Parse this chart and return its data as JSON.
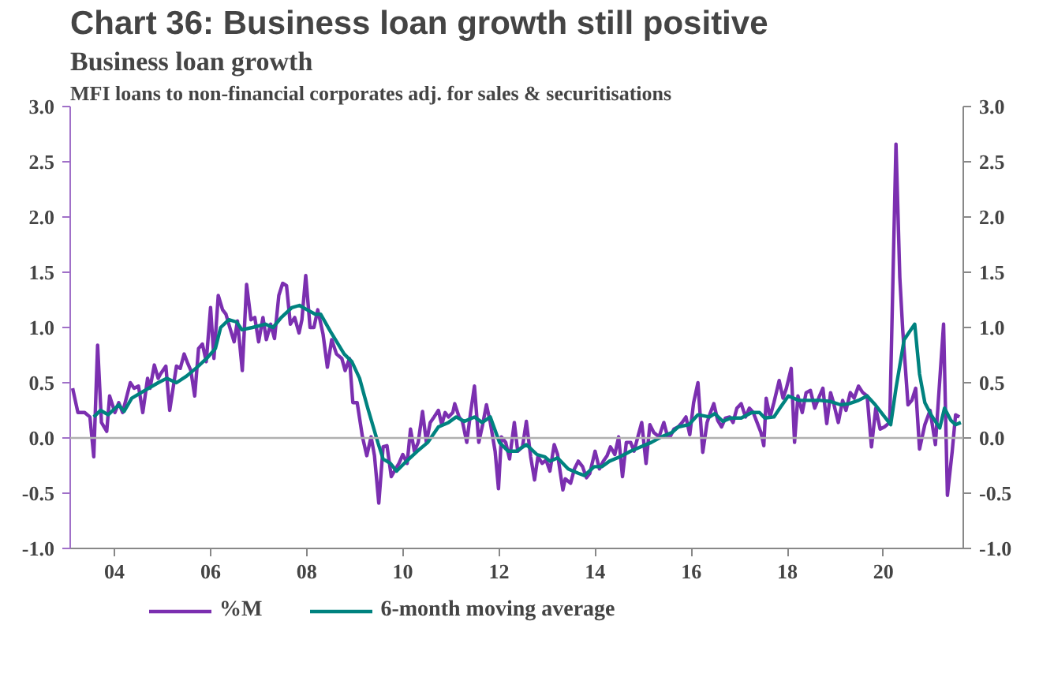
{
  "chart_data": {
    "type": "line",
    "title": "Chart 36: Business loan growth still positive",
    "subtitle": "Business loan growth",
    "annotations": [
      "MFI loans to non-financial corporates adj. for sales & securitisations"
    ],
    "xlim": [
      2003.08,
      2021.66
    ],
    "xticks": [
      {
        "value": 2004,
        "label": "04"
      },
      {
        "value": 2006,
        "label": "06"
      },
      {
        "value": 2008,
        "label": "08"
      },
      {
        "value": 2010,
        "label": "10"
      },
      {
        "value": 2012,
        "label": "12"
      },
      {
        "value": 2014,
        "label": "14"
      },
      {
        "value": 2016,
        "label": "16"
      },
      {
        "value": 2018,
        "label": "18"
      },
      {
        "value": 2020,
        "label": "20"
      }
    ],
    "ylim": [
      -1.0,
      3.0
    ],
    "yticks": [
      {
        "value": -1.0,
        "label": "-1.0"
      },
      {
        "value": -0.5,
        "label": "-0.5"
      },
      {
        "value": 0,
        "label": "0.0"
      },
      {
        "value": 0.5,
        "label": "0.5"
      },
      {
        "value": 1.0,
        "label": "1.0"
      },
      {
        "value": 1.5,
        "label": "1.5"
      },
      {
        "value": 2.0,
        "label": "2.0"
      },
      {
        "value": 2.5,
        "label": "2.5"
      },
      {
        "value": 3.0,
        "label": "3.0"
      }
    ],
    "y2lim": [
      -1.0,
      3.0
    ],
    "y2ticks": [
      {
        "value": -1.0,
        "label": "-1.0"
      },
      {
        "value": -0.5,
        "label": "-0.5"
      },
      {
        "value": 0,
        "label": "0.0"
      },
      {
        "value": 0.5,
        "label": "0.5"
      },
      {
        "value": 1.0,
        "label": "1.0"
      },
      {
        "value": 1.5,
        "label": "1.5"
      },
      {
        "value": 2.0,
        "label": "2.0"
      },
      {
        "value": 2.5,
        "label": "2.5"
      },
      {
        "value": 3.0,
        "label": "3.0"
      }
    ],
    "ref_lines": [
      {
        "axis": "y",
        "value": 0,
        "color": "#b0b0b0"
      }
    ],
    "grid": false,
    "legend": "bottom",
    "marker": "none",
    "line_style": "solid",
    "series": [
      {
        "name": "%M",
        "color": "#7b2fb0",
        "x": [
          2003.13,
          2003.24,
          2003.38,
          2003.49,
          2003.57,
          2003.65,
          2003.73,
          2003.84,
          2003.9,
          2004.01,
          2004.09,
          2004.17,
          2004.33,
          2004.41,
          2004.5,
          2004.59,
          2004.69,
          2004.74,
          2004.83,
          2004.91,
          2004.96,
          2005.07,
          2005.15,
          2005.29,
          2005.37,
          2005.45,
          2005.53,
          2005.59,
          2005.67,
          2005.75,
          2005.83,
          2005.91,
          2006.0,
          2006.07,
          2006.16,
          2006.25,
          2006.32,
          2006.4,
          2006.49,
          2006.56,
          2006.66,
          2006.75,
          2006.84,
          2006.92,
          2007.0,
          2007.09,
          2007.16,
          2007.25,
          2007.33,
          2007.42,
          2007.5,
          2007.58,
          2007.66,
          2007.75,
          2007.84,
          2007.9,
          2007.98,
          2008.07,
          2008.15,
          2008.23,
          2008.34,
          2008.43,
          2008.52,
          2008.62,
          2008.73,
          2008.8,
          2008.89,
          2008.96,
          2009.05,
          2009.16,
          2009.25,
          2009.34,
          2009.41,
          2009.5,
          2009.59,
          2009.67,
          2009.76,
          2009.85,
          2009.92,
          2010.0,
          2010.09,
          2010.16,
          2010.24,
          2010.32,
          2010.41,
          2010.49,
          2010.57,
          2010.65,
          2010.74,
          2010.81,
          2010.88,
          2010.95,
          2011.04,
          2011.08,
          2011.17,
          2011.24,
          2011.33,
          2011.41,
          2011.49,
          2011.58,
          2011.66,
          2011.74,
          2011.82,
          2011.92,
          2011.99,
          2012.05,
          2012.14,
          2012.22,
          2012.32,
          2012.39,
          2012.49,
          2012.57,
          2012.66,
          2012.74,
          2012.81,
          2012.9,
          2012.98,
          2013.06,
          2013.15,
          2013.22,
          2013.33,
          2013.38,
          2013.49,
          2013.57,
          2013.65,
          2013.74,
          2013.82,
          2013.89,
          2014.0,
          2014.09,
          2014.17,
          2014.25,
          2014.32,
          2014.41,
          2014.49,
          2014.57,
          2014.65,
          2014.74,
          2014.81,
          2014.89,
          2014.97,
          2015.06,
          2015.14,
          2015.22,
          2015.33,
          2015.43,
          2015.51,
          2015.56,
          2015.64,
          2015.73,
          2015.81,
          2015.89,
          2015.97,
          2016.05,
          2016.14,
          2016.24,
          2016.33,
          2016.4,
          2016.47,
          2016.55,
          2016.63,
          2016.71,
          2016.8,
          2016.87,
          2016.95,
          2017.04,
          2017.13,
          2017.21,
          2017.29,
          2017.37,
          2017.45,
          2017.51,
          2017.56,
          2017.64,
          2017.72,
          2017.83,
          2017.91,
          2017.98,
          2018.08,
          2018.15,
          2018.22,
          2018.31,
          2018.39,
          2018.48,
          2018.57,
          2018.66,
          2018.74,
          2018.82,
          2018.9,
          2018.96,
          2019.06,
          2019.15,
          2019.22,
          2019.31,
          2019.39,
          2019.48,
          2019.57,
          2019.66,
          2019.75,
          2019.84,
          2019.93,
          2020.02,
          2020.13,
          2020.26,
          2020.34,
          2020.4,
          2020.51,
          2020.59,
          2020.67,
          2020.75,
          2020.86,
          2020.97,
          2021.08,
          2021.25,
          2021.33,
          2021.43,
          2021.5,
          2021.58
        ],
        "values": [
          0.45,
          0.23,
          0.23,
          0.19,
          -0.17,
          0.84,
          0.14,
          0.06,
          0.38,
          0.23,
          0.32,
          0.23,
          0.5,
          0.45,
          0.47,
          0.23,
          0.54,
          0.45,
          0.66,
          0.54,
          0.58,
          0.65,
          0.25,
          0.65,
          0.63,
          0.76,
          0.67,
          0.61,
          0.38,
          0.81,
          0.85,
          0.69,
          1.18,
          0.72,
          1.29,
          1.16,
          1.12,
          1.0,
          0.87,
          1.06,
          0.61,
          1.39,
          1.07,
          1.09,
          0.87,
          1.09,
          0.89,
          1.03,
          0.9,
          1.29,
          1.4,
          1.38,
          1.03,
          1.09,
          0.95,
          1.07,
          1.47,
          1.0,
          1.0,
          1.16,
          0.94,
          0.64,
          0.89,
          0.76,
          0.72,
          0.61,
          0.72,
          0.32,
          0.32,
          0.01,
          -0.16,
          0.01,
          -0.16,
          -0.59,
          -0.08,
          -0.07,
          -0.35,
          -0.28,
          -0.23,
          -0.15,
          -0.23,
          0.08,
          -0.12,
          -0.04,
          0.24,
          -0.04,
          0.14,
          0.19,
          0.25,
          0.12,
          0.23,
          0.19,
          0.23,
          0.31,
          0.19,
          0.15,
          -0.04,
          0.23,
          0.47,
          -0.04,
          0.12,
          0.3,
          0.14,
          -0.12,
          -0.46,
          0.01,
          -0.04,
          -0.19,
          0.14,
          -0.12,
          -0.08,
          0.15,
          -0.17,
          -0.38,
          -0.17,
          -0.23,
          -0.2,
          -0.3,
          -0.06,
          -0.15,
          -0.47,
          -0.37,
          -0.41,
          -0.28,
          -0.21,
          -0.26,
          -0.36,
          -0.32,
          -0.12,
          -0.28,
          -0.21,
          -0.16,
          -0.08,
          -0.15,
          0.01,
          -0.35,
          -0.04,
          -0.04,
          -0.12,
          0.01,
          0.14,
          -0.23,
          0.12,
          0.05,
          0.01,
          0.14,
          0.01,
          0.01,
          0.08,
          0.1,
          0.14,
          0.19,
          0.03,
          0.32,
          0.5,
          -0.13,
          0.14,
          0.23,
          0.31,
          0.16,
          0.1,
          0.18,
          0.19,
          0.14,
          0.27,
          0.31,
          0.19,
          0.27,
          0.23,
          0.14,
          0.05,
          -0.07,
          0.36,
          0.19,
          0.32,
          0.52,
          0.36,
          0.45,
          0.63,
          -0.04,
          0.38,
          0.23,
          0.41,
          0.43,
          0.27,
          0.37,
          0.45,
          0.13,
          0.41,
          0.32,
          0.14,
          0.34,
          0.25,
          0.41,
          0.36,
          0.47,
          0.41,
          0.38,
          -0.08,
          0.27,
          0.08,
          0.1,
          0.14,
          2.66,
          1.45,
          0.98,
          0.3,
          0.34,
          0.45,
          -0.1,
          0.12,
          0.25,
          -0.06,
          1.03,
          -0.52,
          -0.12,
          0.21,
          0.19
        ]
      },
      {
        "name": "6-month moving average",
        "color": "#00827f",
        "x": [
          2003.57,
          2003.71,
          2003.87,
          2004.09,
          2004.2,
          2004.36,
          2004.63,
          2004.91,
          2005.09,
          2005.29,
          2005.5,
          2005.72,
          2005.92,
          2006.1,
          2006.21,
          2006.38,
          2006.54,
          2006.65,
          2006.87,
          2007.14,
          2007.3,
          2007.47,
          2007.69,
          2007.85,
          2008.01,
          2008.18,
          2008.29,
          2008.5,
          2008.78,
          2008.94,
          2009.1,
          2009.27,
          2009.48,
          2009.59,
          2009.74,
          2009.87,
          2010.03,
          2010.3,
          2010.52,
          2010.74,
          2010.95,
          2011.11,
          2011.28,
          2011.49,
          2011.65,
          2011.82,
          2012.01,
          2012.19,
          2012.36,
          2012.57,
          2012.79,
          2012.95,
          2013.06,
          2013.22,
          2013.44,
          2013.65,
          2013.78,
          2013.98,
          2014.14,
          2014.3,
          2014.52,
          2014.74,
          2014.95,
          2015.17,
          2015.38,
          2015.6,
          2015.73,
          2015.95,
          2016.14,
          2016.38,
          2016.49,
          2016.66,
          2016.82,
          2017.04,
          2017.26,
          2017.42,
          2017.53,
          2017.72,
          2017.86,
          2018.02,
          2018.24,
          2018.46,
          2018.68,
          2018.9,
          2019.11,
          2019.28,
          2019.48,
          2019.66,
          2019.83,
          2019.99,
          2020.15,
          2020.26,
          2020.43,
          2020.54,
          2020.65,
          2020.75,
          2020.86,
          2020.99,
          2021.17,
          2021.27,
          2021.4,
          2021.5,
          2021.61
        ],
        "values": [
          0.19,
          0.25,
          0.21,
          0.3,
          0.24,
          0.36,
          0.43,
          0.5,
          0.54,
          0.5,
          0.56,
          0.64,
          0.72,
          0.81,
          1.0,
          1.07,
          1.05,
          0.98,
          1.0,
          1.03,
          1.0,
          1.09,
          1.18,
          1.2,
          1.16,
          1.12,
          1.12,
          0.96,
          0.76,
          0.69,
          0.54,
          0.27,
          -0.04,
          -0.19,
          -0.23,
          -0.3,
          -0.23,
          -0.12,
          -0.04,
          0.1,
          0.14,
          0.19,
          0.15,
          0.19,
          0.14,
          0.19,
          -0.04,
          -0.12,
          -0.12,
          -0.06,
          -0.15,
          -0.17,
          -0.21,
          -0.18,
          -0.28,
          -0.32,
          -0.34,
          -0.26,
          -0.26,
          -0.21,
          -0.17,
          -0.12,
          -0.08,
          -0.04,
          0.01,
          0.05,
          0.1,
          0.12,
          0.21,
          0.19,
          0.22,
          0.15,
          0.18,
          0.18,
          0.23,
          0.23,
          0.18,
          0.19,
          0.28,
          0.38,
          0.34,
          0.34,
          0.34,
          0.33,
          0.3,
          0.31,
          0.34,
          0.38,
          0.3,
          0.21,
          0.12,
          0.45,
          0.89,
          0.96,
          1.03,
          0.58,
          0.32,
          0.21,
          0.09,
          0.27,
          0.16,
          0.12,
          0.14
        ]
      }
    ]
  }
}
